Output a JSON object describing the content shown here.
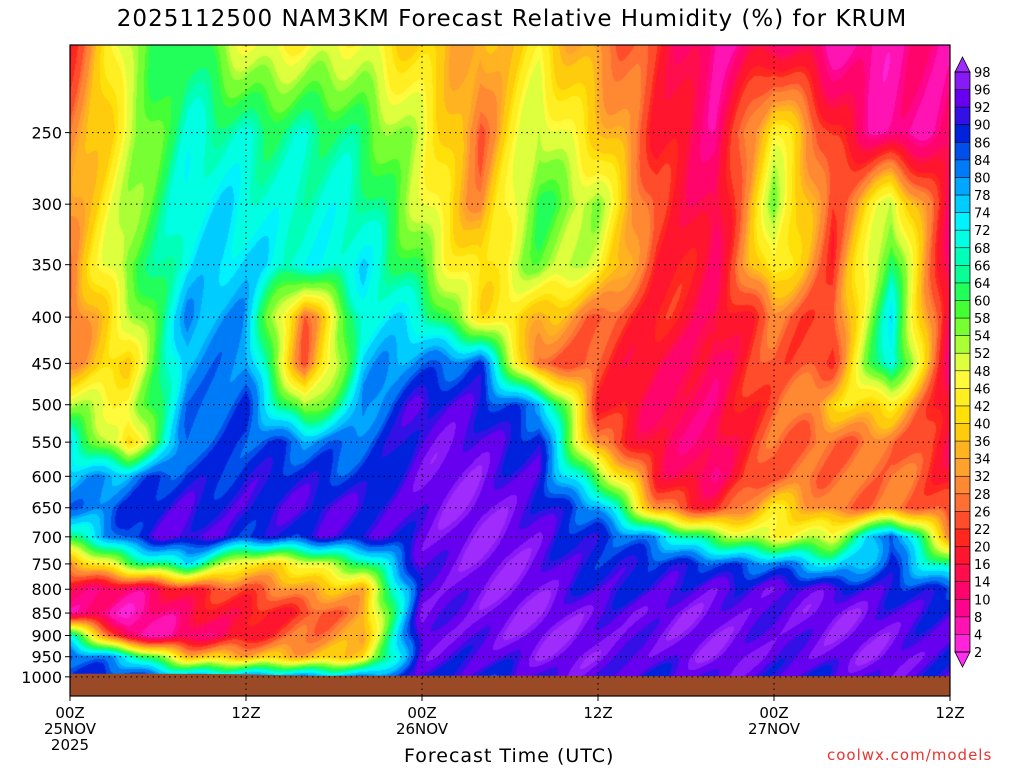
{
  "title": "2025112500 NAM3KM Forecast Relative Humidity (%) for KRUM",
  "chart_data": {
    "type": "heatmap",
    "title": "2025112500 NAM3KM Forecast Relative Humidity (%) for KRUM",
    "xlabel": "Forecast Time (UTC)",
    "ylabel": "",
    "x_ticks": [
      {
        "hour": 0,
        "lines": [
          "00Z",
          "25NOV",
          "2025"
        ]
      },
      {
        "hour": 12,
        "lines": [
          "12Z"
        ]
      },
      {
        "hour": 24,
        "lines": [
          "00Z",
          "26NOV"
        ]
      },
      {
        "hour": 36,
        "lines": [
          "12Z"
        ]
      },
      {
        "hour": 48,
        "lines": [
          "00Z",
          "27NOV"
        ]
      },
      {
        "hour": 60,
        "lines": [
          "12Z"
        ]
      }
    ],
    "xlim": [
      0,
      60
    ],
    "y_ticks": [
      250,
      300,
      350,
      400,
      450,
      500,
      550,
      600,
      650,
      700,
      750,
      800,
      850,
      900,
      950,
      1000
    ],
    "ylim": [
      1050,
      200
    ],
    "y_scale": "log",
    "grid": true,
    "surface_pressure_hpa": [
      992,
      992,
      993,
      997,
      997,
      997,
      997,
      998,
      998,
      998,
      998,
      998
    ],
    "colorbar": {
      "levels": [
        2,
        4,
        8,
        10,
        14,
        16,
        20,
        22,
        26,
        28,
        32,
        34,
        36,
        40,
        42,
        46,
        48,
        52,
        54,
        58,
        60,
        64,
        66,
        68,
        72,
        74,
        78,
        80,
        84,
        86,
        90,
        92,
        96,
        98
      ],
      "stops": [
        {
          "v": 0,
          "c": "#ff33ff"
        },
        {
          "v": 10,
          "c": "#ff0080"
        },
        {
          "v": 20,
          "c": "#ff1a1a"
        },
        {
          "v": 26,
          "c": "#ff6633"
        },
        {
          "v": 32,
          "c": "#ff9933"
        },
        {
          "v": 40,
          "c": "#ffdd00"
        },
        {
          "v": 48,
          "c": "#ffff44"
        },
        {
          "v": 54,
          "c": "#99ff33"
        },
        {
          "v": 60,
          "c": "#33ff33"
        },
        {
          "v": 66,
          "c": "#00ffaa"
        },
        {
          "v": 72,
          "c": "#00ffff"
        },
        {
          "v": 80,
          "c": "#0099ff"
        },
        {
          "v": 88,
          "c": "#0022dd"
        },
        {
          "v": 94,
          "c": "#6600ee"
        },
        {
          "v": 100,
          "c": "#aa33ff"
        }
      ]
    },
    "rh_grid": {
      "hours": [
        0,
        4,
        8,
        12,
        16,
        20,
        24,
        28,
        32,
        36,
        40,
        44,
        48,
        52,
        56,
        60
      ],
      "pressure_levels": [
        200,
        250,
        300,
        350,
        400,
        450,
        500,
        550,
        600,
        650,
        700,
        750,
        800,
        850,
        900,
        950,
        1000
      ],
      "rh_rows": [
        [
          22,
          55,
          62,
          50,
          45,
          48,
          40,
          30,
          45,
          30,
          20,
          10,
          12,
          8,
          8,
          8
        ],
        [
          28,
          50,
          66,
          68,
          66,
          60,
          52,
          24,
          55,
          40,
          18,
          12,
          45,
          20,
          8,
          8
        ],
        [
          30,
          55,
          70,
          72,
          70,
          66,
          52,
          30,
          60,
          55,
          20,
          12,
          55,
          20,
          55,
          12
        ],
        [
          28,
          60,
          72,
          74,
          72,
          70,
          58,
          40,
          55,
          50,
          20,
          14,
          50,
          20,
          66,
          12
        ],
        [
          22,
          50,
          80,
          76,
          28,
          70,
          70,
          45,
          35,
          28,
          20,
          12,
          30,
          20,
          72,
          12
        ],
        [
          30,
          40,
          82,
          80,
          26,
          76,
          80,
          88,
          22,
          24,
          16,
          10,
          28,
          22,
          74,
          14
        ],
        [
          52,
          45,
          84,
          84,
          50,
          80,
          90,
          92,
          80,
          20,
          16,
          10,
          26,
          40,
          40,
          16
        ],
        [
          74,
          36,
          86,
          86,
          80,
          86,
          92,
          94,
          90,
          26,
          16,
          10,
          26,
          28,
          26,
          16
        ],
        [
          80,
          78,
          88,
          90,
          86,
          88,
          94,
          95,
          92,
          55,
          20,
          12,
          24,
          30,
          28,
          18
        ],
        [
          84,
          86,
          90,
          92,
          90,
          92,
          95,
          96,
          94,
          80,
          30,
          20,
          40,
          30,
          28,
          20
        ],
        [
          66,
          88,
          92,
          90,
          88,
          90,
          95,
          96,
          95,
          88,
          76,
          60,
          45,
          50,
          90,
          30
        ],
        [
          30,
          60,
          70,
          42,
          46,
          60,
          95,
          96,
          95,
          90,
          86,
          88,
          82,
          70,
          88,
          60
        ],
        [
          12,
          12,
          18,
          24,
          36,
          34,
          95,
          96,
          95,
          92,
          88,
          94,
          95,
          90,
          92,
          86
        ],
        [
          8,
          6,
          14,
          16,
          24,
          30,
          95,
          96,
          96,
          96,
          94,
          95,
          95,
          95,
          94,
          92
        ],
        [
          66,
          8,
          10,
          14,
          30,
          34,
          95,
          96,
          96,
          96,
          95,
          95,
          95,
          95,
          95,
          94
        ],
        [
          86,
          72,
          40,
          34,
          36,
          42,
          92,
          94,
          95,
          95,
          95,
          95,
          95,
          95,
          95,
          94
        ],
        [
          88,
          86,
          82,
          80,
          80,
          82,
          88,
          90,
          92,
          92,
          92,
          92,
          92,
          92,
          92,
          92
        ]
      ]
    }
  },
  "x_axis_title": "Forecast Time (UTC)",
  "credit": "coolwx.com/models",
  "colors": {
    "ground": "#9b4a28",
    "grid": "#000000",
    "credit": "#e8352f"
  }
}
